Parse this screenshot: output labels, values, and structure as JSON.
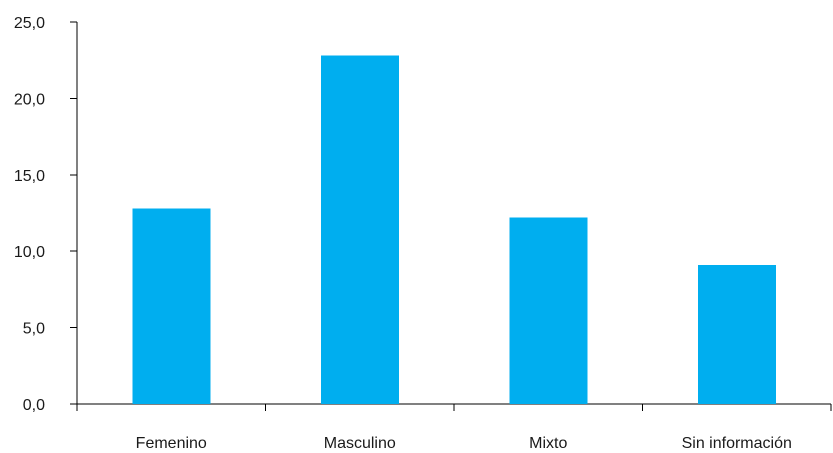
{
  "chart_data": {
    "type": "bar",
    "title": "",
    "xlabel": "",
    "ylabel": "",
    "categories": [
      "Femenino",
      "Masculino",
      "Mixto",
      "Sin información"
    ],
    "values": [
      12.8,
      22.8,
      12.2,
      9.1
    ],
    "ylim": [
      0,
      25
    ],
    "y_ticks": [
      "0,0",
      "5,0",
      "10,0",
      "15,0",
      "20,0",
      "25,0"
    ],
    "y_tick_values": [
      0,
      5,
      10,
      15,
      20,
      25
    ],
    "grid": false,
    "legend": "none",
    "bar_color": "#00aeef"
  }
}
